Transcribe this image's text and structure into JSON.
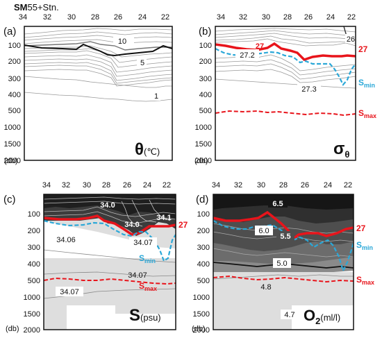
{
  "header": {
    "prefix": "SM",
    "suffix": "55+Stn."
  },
  "pressure_unit": "(db)",
  "station_ticks": [
    "34",
    "32",
    "30",
    "28",
    "26",
    "24",
    "22"
  ],
  "pressure_ticks": [
    "100",
    "200",
    "300",
    "400",
    "500",
    "1000",
    "1500",
    "2000"
  ],
  "panels": [
    {
      "id": "a",
      "letter": "(a)",
      "quantity": "θ",
      "unit": "(℃)",
      "contour_labels": [
        "10",
        "5",
        "1"
      ]
    },
    {
      "id": "b",
      "letter": "(b)",
      "quantity": "σθ",
      "unit": "",
      "contour_labels": [
        "27",
        "27.2",
        "26",
        "27.3"
      ],
      "side": {
        "line27": "27",
        "smin": "Smin",
        "smax": "Smax"
      }
    },
    {
      "id": "c",
      "letter": "(c)",
      "quantity": "S",
      "unit": "(psu)",
      "contour_labels": [
        "34.0",
        "34.0",
        "34.1",
        "34.06",
        "34.07",
        "34.07",
        "34.07"
      ],
      "side": {
        "line27": "27",
        "smin": "Smin",
        "smax": "Smax"
      }
    },
    {
      "id": "d",
      "letter": "(d)",
      "quantity": "O2",
      "unit": "(ml/l)",
      "contour_labels": [
        "6.5",
        "6.0",
        "5.5",
        "5.0",
        "4.8",
        "4.7"
      ],
      "side": {
        "line27": "27",
        "smin": "Smin",
        "smax": "Smax"
      }
    }
  ],
  "colors": {
    "red_27": "#e8141b",
    "smin_blue": "#2ba8d8",
    "smax_red": "#e8141b",
    "contour_gray": "#888888",
    "dark_fill": "#1a1a1a",
    "light_fill": "#dedede"
  }
}
